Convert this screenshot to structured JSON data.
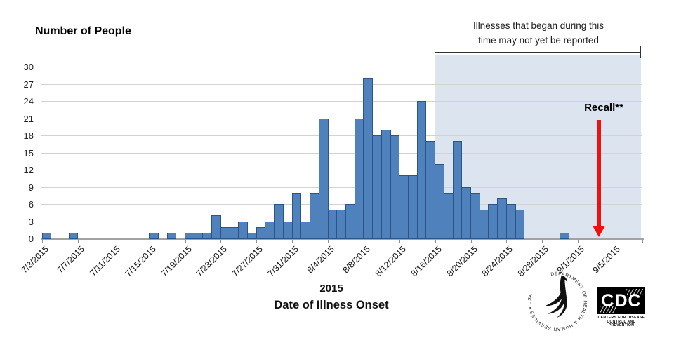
{
  "chart_data": {
    "type": "bar",
    "title": "Number of People",
    "xlabel_line1": "2015",
    "xlabel_line2": "Date of Illness Onset",
    "ylabel": "Number of People",
    "ylim": [
      0,
      30
    ],
    "ytick_step": 3,
    "yticks": [
      0,
      3,
      6,
      9,
      12,
      15,
      18,
      21,
      24,
      27,
      30
    ],
    "grid": true,
    "x_tick_labels": [
      "7/3/2015",
      "7/7/2015",
      "7/11/2015",
      "7/15/2015",
      "7/19/2015",
      "7/23/2015",
      "7/27/2015",
      "7/31/2015",
      "8/4/2015",
      "8/8/2015",
      "8/12/2015",
      "8/16/2015",
      "8/20/2015",
      "8/24/2015",
      "8/28/2015",
      "9/1/2015",
      "9/5/2015"
    ],
    "bar_color": "#4f81bd",
    "bar_border_color": "#2c5486",
    "series": [
      {
        "date": "7/3/2015",
        "count": 1
      },
      {
        "date": "7/6/2015",
        "count": 1
      },
      {
        "date": "7/15/2015",
        "count": 1
      },
      {
        "date": "7/17/2015",
        "count": 1
      },
      {
        "date": "7/19/2015",
        "count": 1
      },
      {
        "date": "7/20/2015",
        "count": 1
      },
      {
        "date": "7/21/2015",
        "count": 1
      },
      {
        "date": "7/22/2015",
        "count": 4
      },
      {
        "date": "7/23/2015",
        "count": 2
      },
      {
        "date": "7/24/2015",
        "count": 2
      },
      {
        "date": "7/25/2015",
        "count": 3
      },
      {
        "date": "7/26/2015",
        "count": 1
      },
      {
        "date": "7/27/2015",
        "count": 2
      },
      {
        "date": "7/28/2015",
        "count": 3
      },
      {
        "date": "7/29/2015",
        "count": 6
      },
      {
        "date": "7/30/2015",
        "count": 3
      },
      {
        "date": "7/31/2015",
        "count": 8
      },
      {
        "date": "8/1/2015",
        "count": 3
      },
      {
        "date": "8/2/2015",
        "count": 8
      },
      {
        "date": "8/3/2015",
        "count": 21
      },
      {
        "date": "8/4/2015",
        "count": 5
      },
      {
        "date": "8/5/2015",
        "count": 5
      },
      {
        "date": "8/6/2015",
        "count": 6
      },
      {
        "date": "8/7/2015",
        "count": 21
      },
      {
        "date": "8/8/2015",
        "count": 28
      },
      {
        "date": "8/9/2015",
        "count": 18
      },
      {
        "date": "8/10/2015",
        "count": 19
      },
      {
        "date": "8/11/2015",
        "count": 18
      },
      {
        "date": "8/12/2015",
        "count": 11
      },
      {
        "date": "8/13/2015",
        "count": 11
      },
      {
        "date": "8/14/2015",
        "count": 24
      },
      {
        "date": "8/15/2015",
        "count": 17
      },
      {
        "date": "8/16/2015",
        "count": 13
      },
      {
        "date": "8/17/2015",
        "count": 8
      },
      {
        "date": "8/18/2015",
        "count": 17
      },
      {
        "date": "8/19/2015",
        "count": 9
      },
      {
        "date": "8/20/2015",
        "count": 8
      },
      {
        "date": "8/21/2015",
        "count": 5
      },
      {
        "date": "8/22/2015",
        "count": 6
      },
      {
        "date": "8/23/2015",
        "count": 7
      },
      {
        "date": "8/24/2015",
        "count": 6
      },
      {
        "date": "8/25/2015",
        "count": 5
      },
      {
        "date": "8/30/2015",
        "count": 1
      }
    ],
    "not_yet_reported": {
      "label_line1": "Illnesses that began during this",
      "label_line2": "time may not yet be reported",
      "start_date": "8/16/2015",
      "shade_color": "#dce4f0"
    },
    "recall": {
      "label": "Recall**",
      "arrow_color": "#ee1111"
    }
  },
  "logos": {
    "hhs_ring_text": "DEPARTMENT OF HEALTH & HUMAN SERVICES • USA",
    "cdc_acronym": "CDC",
    "cdc_caption_line1": "Centers for Disease",
    "cdc_caption_line2": "Control and Prevention"
  }
}
